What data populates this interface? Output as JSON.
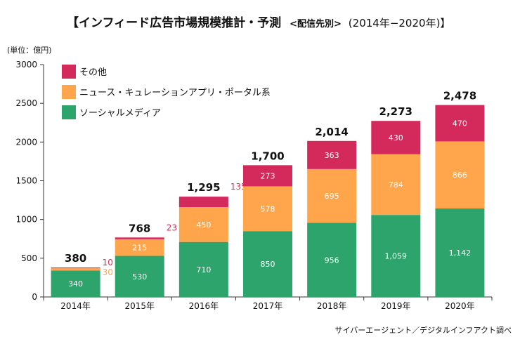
{
  "chart_data": {
    "type": "bar",
    "stacked": true,
    "title_main": "【インフィード広告市場規模推計・予測",
    "title_sub": "<配信先別>",
    "title_years": "(2014年−2020年)】",
    "unit_label": "(単位：億円)",
    "source": "サイバーエージェント／デジタルインフアクト調べ",
    "categories": [
      "2014年",
      "2015年",
      "2016年",
      "2017年",
      "2018年",
      "2019年",
      "2020年"
    ],
    "series": [
      {
        "name": "ソーシャルメディア",
        "color": "#2ca46b",
        "values": [
          340,
          530,
          710,
          850,
          956,
          1059,
          1142
        ]
      },
      {
        "name": "ニュース・キュレーションアプリ・ポータル系",
        "color": "#ffa64d",
        "values": [
          30,
          215,
          450,
          578,
          695,
          784,
          866
        ]
      },
      {
        "name": "その他",
        "color": "#d42a5b",
        "values": [
          10,
          23,
          135,
          273,
          363,
          430,
          470
        ]
      }
    ],
    "value_labels": [
      [
        "340",
        "530",
        "710",
        "850",
        "956",
        "1,059",
        "1,142"
      ],
      [
        "30",
        "215",
        "450",
        "578",
        "695",
        "784",
        "866"
      ],
      [
        "10",
        "23",
        "135",
        "273",
        "363",
        "430",
        "470"
      ]
    ],
    "totals": [
      "380",
      "768",
      "1,295",
      "1,700",
      "2,014",
      "2,273",
      "2,478"
    ],
    "ylim": [
      0,
      3000
    ],
    "yticks": [
      "0",
      "500",
      "1000",
      "1500",
      "2000",
      "2500",
      "3000"
    ],
    "ytick_values": [
      0,
      500,
      1000,
      1500,
      2000,
      2500,
      3000
    ],
    "legend_position": "top-left",
    "grid": false
  }
}
